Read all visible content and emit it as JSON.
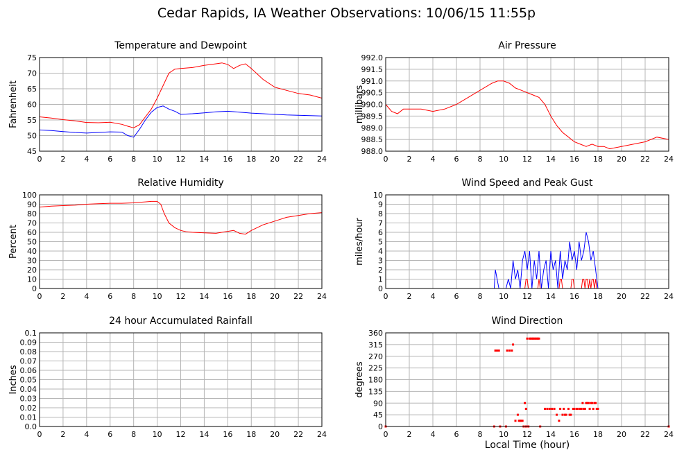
{
  "title": "Cedar Rapids, IA Weather Observations: 10/06/15 11:55p",
  "shared_xlabel": "Local Time (hour)",
  "colors": {
    "red": "#ff0000",
    "blue": "#0000ff",
    "grid": "#b4b4b4"
  },
  "chart_data": [
    {
      "id": "temp",
      "type": "line",
      "title": "Temperature and Dewpoint",
      "ylabel": "Fahrenheit",
      "xlim": [
        0,
        24
      ],
      "ylim": [
        45,
        75
      ],
      "xticks": [
        "0",
        "2",
        "4",
        "6",
        "8",
        "10",
        "12",
        "14",
        "16",
        "18",
        "20",
        "22",
        "24"
      ],
      "yticks": [
        "45",
        "50",
        "55",
        "60",
        "65",
        "70",
        "75"
      ],
      "grid": true,
      "series": [
        {
          "color": "#ff0000",
          "x": [
            0,
            1,
            2,
            3,
            4,
            5,
            6,
            7,
            7.5,
            8,
            8.5,
            9,
            9.5,
            10,
            10.5,
            11,
            11.5,
            12,
            13,
            14,
            15,
            15.5,
            16,
            16.5,
            17,
            17.5,
            18,
            19,
            20,
            21,
            22,
            23,
            24
          ],
          "y": [
            56,
            55.6,
            55.1,
            54.7,
            54.2,
            54.1,
            54.3,
            53.6,
            53,
            52.5,
            53.5,
            56,
            58.5,
            62,
            66,
            70,
            71.3,
            71.5,
            71.8,
            72.5,
            73,
            73.3,
            72.8,
            71.5,
            72.5,
            73,
            71.5,
            68,
            65.5,
            64.5,
            63.5,
            63,
            62
          ]
        },
        {
          "color": "#0000ff",
          "x": [
            0,
            1,
            2,
            3,
            4,
            5,
            6,
            7,
            7.5,
            8,
            8.5,
            9,
            9.5,
            10,
            10.5,
            11,
            11.5,
            12,
            13,
            14,
            15,
            16,
            17,
            18,
            19,
            20,
            21,
            22,
            23,
            24
          ],
          "y": [
            51.8,
            51.6,
            51.3,
            51,
            50.8,
            51,
            51.2,
            51.1,
            50,
            49.5,
            52,
            55,
            57.5,
            59,
            59.5,
            58.5,
            57.8,
            56.8,
            57,
            57.3,
            57.6,
            57.8,
            57.5,
            57.2,
            57,
            56.8,
            56.6,
            56.5,
            56.4,
            56.3
          ]
        }
      ]
    },
    {
      "id": "pressure",
      "type": "line",
      "title": "Air Pressure",
      "ylabel": "millibars",
      "xlim": [
        0,
        24
      ],
      "ylim": [
        988,
        992
      ],
      "xticks": [
        "0",
        "2",
        "4",
        "6",
        "8",
        "10",
        "12",
        "14",
        "16",
        "18",
        "20",
        "22",
        "24"
      ],
      "yticks": [
        "988.0",
        "988.5",
        "989.0",
        "989.5",
        "990.0",
        "990.5",
        "991.0",
        "991.5",
        "992.0"
      ],
      "grid": true,
      "series": [
        {
          "color": "#ff0000",
          "x": [
            0,
            0.5,
            1,
            1.5,
            2,
            3,
            4,
            5,
            6,
            7,
            8,
            9,
            9.5,
            10,
            10.5,
            11,
            11.5,
            12,
            12.5,
            13,
            13.5,
            14,
            14.5,
            15,
            15.5,
            16,
            16.5,
            17,
            17.5,
            18,
            18.5,
            19,
            20,
            21,
            22,
            23,
            24
          ],
          "y": [
            990,
            989.7,
            989.6,
            989.8,
            989.8,
            989.8,
            989.7,
            989.8,
            990,
            990.3,
            990.6,
            990.9,
            991,
            991,
            990.9,
            990.7,
            990.6,
            990.5,
            990.4,
            990.3,
            990,
            989.5,
            989.1,
            988.8,
            988.6,
            988.4,
            988.3,
            988.2,
            988.3,
            988.2,
            988.2,
            988.1,
            988.2,
            988.3,
            988.4,
            988.6,
            988.5
          ]
        }
      ]
    },
    {
      "id": "humidity",
      "type": "line",
      "title": "Relative Humidity",
      "ylabel": "Percent",
      "xlim": [
        0,
        24
      ],
      "ylim": [
        0,
        100
      ],
      "xticks": [
        "0",
        "2",
        "4",
        "6",
        "8",
        "10",
        "12",
        "14",
        "16",
        "18",
        "20",
        "22",
        "24"
      ],
      "yticks": [
        "0",
        "10",
        "20",
        "30",
        "40",
        "50",
        "60",
        "70",
        "80",
        "90",
        "100"
      ],
      "grid": true,
      "series": [
        {
          "color": "#ff0000",
          "x": [
            0,
            1,
            2,
            3,
            4,
            5,
            6,
            7,
            8,
            8.5,
            9,
            9.5,
            10,
            10.3,
            10.6,
            11,
            11.5,
            12,
            12.5,
            13,
            14,
            15,
            16,
            16.5,
            17,
            17.5,
            18,
            19,
            20,
            21,
            22,
            23,
            24
          ],
          "y": [
            87,
            88,
            88.5,
            89,
            90,
            90.5,
            91,
            91,
            91.5,
            92,
            92.5,
            93,
            93,
            90,
            80,
            70,
            65,
            62,
            60.5,
            60,
            59.5,
            59,
            61,
            62,
            59,
            58,
            62,
            68,
            72,
            76,
            78,
            80,
            81
          ]
        }
      ]
    },
    {
      "id": "wind",
      "type": "line",
      "title": "Wind Speed and Peak Gust",
      "ylabel": "miles/hour",
      "xlim": [
        0,
        24
      ],
      "ylim": [
        0,
        10
      ],
      "xticks": [
        "0",
        "2",
        "4",
        "6",
        "8",
        "10",
        "12",
        "14",
        "16",
        "18",
        "20",
        "22",
        "24"
      ],
      "yticks": [
        "0",
        "1",
        "2",
        "3",
        "4",
        "5",
        "6",
        "7",
        "8",
        "9",
        "10"
      ],
      "grid": true,
      "series": [
        {
          "color": "#0000ff",
          "x": [
            0,
            9.2,
            9.3,
            9.45,
            9.6,
            10.2,
            10.4,
            10.6,
            10.8,
            11.0,
            11.2,
            11.4,
            11.6,
            11.8,
            12.0,
            12.2,
            12.4,
            12.6,
            12.8,
            13.0,
            13.2,
            13.4,
            13.6,
            13.8,
            14.0,
            14.2,
            14.4,
            14.6,
            14.8,
            15.0,
            15.2,
            15.4,
            15.6,
            15.8,
            16.0,
            16.2,
            16.4,
            16.6,
            16.8,
            17.0,
            17.2,
            17.4,
            17.6,
            17.8,
            18.0,
            18.2,
            24
          ],
          "y": [
            0,
            0,
            2,
            1,
            0,
            0,
            1,
            0,
            3,
            1,
            2,
            0,
            3,
            4,
            2,
            4,
            0,
            3,
            1,
            4,
            0,
            2,
            3,
            0,
            4,
            2,
            3,
            0,
            4,
            1,
            3,
            2,
            5,
            3,
            4,
            2,
            5,
            3,
            4,
            6,
            5,
            3,
            4,
            2,
            0,
            0,
            0
          ]
        },
        {
          "color": "#ff0000",
          "x": [
            0,
            11.8,
            11.9,
            12.0,
            12.1,
            12.9,
            13.0,
            13.1,
            14.7,
            14.8,
            14.9,
            15.0,
            15.7,
            15.8,
            15.9,
            16.0,
            16.6,
            16.7,
            16.8,
            16.9,
            17.0,
            17.1,
            17.2,
            17.3,
            17.4,
            17.5,
            17.6,
            17.7,
            17.8,
            17.9,
            24
          ],
          "y": [
            0,
            0,
            1,
            1,
            0,
            0,
            1,
            0,
            0,
            1,
            1,
            0,
            0,
            1,
            1,
            0,
            0,
            1,
            1,
            0,
            1,
            1,
            0,
            1,
            0,
            1,
            1,
            0,
            1,
            0,
            0
          ]
        }
      ]
    },
    {
      "id": "rain",
      "type": "line",
      "title": "24 hour Accumulated Rainfall",
      "ylabel": "Inches",
      "xlim": [
        0,
        24
      ],
      "ylim": [
        0,
        0.1
      ],
      "xticks": [
        "0",
        "2",
        "4",
        "6",
        "8",
        "10",
        "12",
        "14",
        "16",
        "18",
        "20",
        "22",
        "24"
      ],
      "yticks": [
        "0.0",
        "0.01",
        "0.02",
        "0.03",
        "0.04",
        "0.05",
        "0.06",
        "0.07",
        "0.08",
        "0.09",
        "0.1"
      ],
      "grid": true,
      "series": [
        {
          "color": "#ff0000",
          "x": [
            0,
            24
          ],
          "y": [
            0,
            0
          ]
        }
      ]
    },
    {
      "id": "direction",
      "type": "scatter",
      "title": "Wind Direction",
      "ylabel": "degrees",
      "xlim": [
        0,
        24
      ],
      "ylim": [
        0,
        360
      ],
      "xticks": [
        "0",
        "2",
        "4",
        "6",
        "8",
        "10",
        "12",
        "14",
        "16",
        "18",
        "20",
        "22",
        "24"
      ],
      "yticks": [
        "0",
        "45",
        "90",
        "135",
        "180",
        "225",
        "270",
        "315",
        "360"
      ],
      "grid": true,
      "series": [
        {
          "color": "#ff0000",
          "x": [
            9.3,
            9.4,
            9.5,
            9.6,
            10.3,
            10.5,
            10.7,
            10.8,
            11.0,
            11.2,
            11.3,
            11.4,
            11.5,
            11.6,
            11.8,
            11.9,
            12.0,
            12.2,
            12.3,
            12.4,
            12.5,
            12.6,
            12.7,
            12.8,
            12.9,
            13.0,
            13.5,
            13.7,
            13.9,
            14.1,
            14.3,
            14.5,
            14.7,
            14.8,
            15.0,
            15.1,
            15.2,
            15.3,
            15.5,
            15.6,
            15.7,
            15.9,
            16.0,
            16.2,
            16.3,
            16.5,
            16.6,
            16.7,
            16.8,
            16.9,
            17.0,
            17.1,
            17.2,
            17.3,
            17.4,
            17.5,
            17.6,
            17.7,
            17.8,
            17.9,
            18.0
          ],
          "y": [
            292,
            292,
            292,
            292,
            292,
            292,
            292,
            315,
            22,
            45,
            22,
            22,
            22,
            22,
            90,
            68,
            338,
            338,
            338,
            338,
            338,
            338,
            338,
            338,
            338,
            338,
            68,
            68,
            68,
            68,
            68,
            45,
            22,
            68,
            45,
            68,
            45,
            45,
            68,
            45,
            45,
            68,
            68,
            68,
            68,
            68,
            68,
            90,
            68,
            68,
            90,
            90,
            90,
            68,
            90,
            90,
            68,
            90,
            90,
            68,
            68
          ]
        },
        {
          "color": "#ff0000",
          "x": [
            0,
            9.2,
            9.7,
            10.2,
            11.7,
            11.9,
            12.1,
            13.1,
            24
          ],
          "y": [
            0,
            0,
            0,
            0,
            0,
            0,
            0,
            0,
            0
          ]
        }
      ]
    }
  ]
}
